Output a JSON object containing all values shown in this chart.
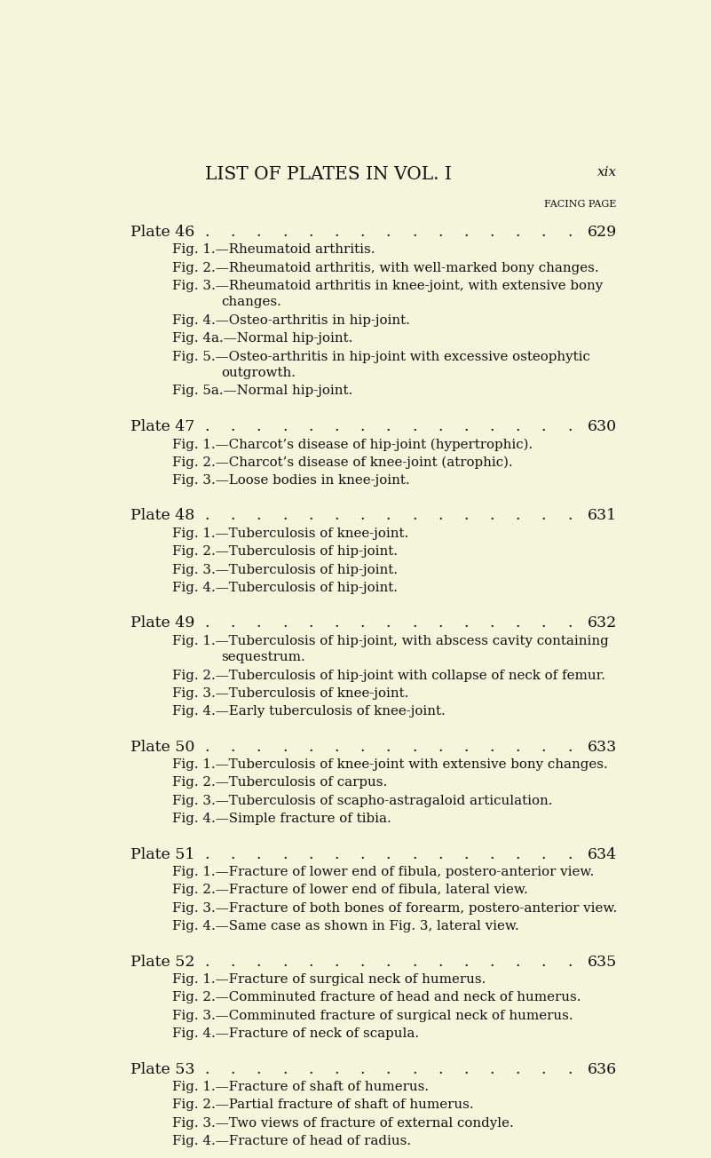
{
  "bg_color": "#f5f5dc",
  "title": "LIST OF PLATES IN VOL. I",
  "page_num": "xix",
  "facing_page_label": "FACING PAGE",
  "sections": [
    {
      "plate": "Plate 46",
      "page": "629",
      "figures": [
        "Fig. 1.—Rheumatoid arthritis.",
        "Fig. 2.—Rheumatoid arthritis, with well-marked bony changes.",
        "Fig. 3.—Rheumatoid arthritis in knee-joint, with extensive bony\nchanges.",
        "Fig. 4.—Osteo-arthritis in hip-joint.",
        "Fig. 4a.—Normal hip-joint.",
        "Fig. 5.—Osteo-arthritis in hip-joint with excessive osteophytic\noutgrowth.",
        "Fig. 5a.—Normal hip-joint."
      ]
    },
    {
      "plate": "Plate 47",
      "page": "630",
      "figures": [
        "Fig. 1.—Charcot’s disease of hip-joint (hypertrophic).",
        "Fig. 2.—Charcot’s disease of knee-joint (atrophic).",
        "Fig. 3.—Loose bodies in knee-joint."
      ]
    },
    {
      "plate": "Plate 48",
      "page": "631",
      "figures": [
        "Fig. 1.—Tuberculosis of knee-joint.",
        "Fig. 2.—Tuberculosis of hip-joint.",
        "Fig. 3.—Tuberculosis of hip-joint.",
        "Fig. 4.—Tuberculosis of hip-joint."
      ]
    },
    {
      "plate": "Plate 49",
      "page": "632",
      "figures": [
        "Fig. 1.—Tuberculosis of hip-joint, with abscess cavity containing\nsequestrum.",
        "Fig. 2.—Tuberculosis of hip-joint with collapse of neck of femur.",
        "Fig. 3.—Tuberculosis of knee-joint.",
        "Fig. 4.—Early tuberculosis of knee-joint."
      ]
    },
    {
      "plate": "Plate 50",
      "page": "633",
      "figures": [
        "Fig. 1.—Tuberculosis of knee-joint with extensive bony changes.",
        "Fig. 2.—Tuberculosis of carpus.",
        "Fig. 3.—Tuberculosis of scapho-astragaloid articulation.",
        "Fig. 4.—Simple fracture of tibia."
      ]
    },
    {
      "plate": "Plate 51",
      "page": "634",
      "figures": [
        "Fig. 1.—Fracture of lower end of fibula, postero-anterior view.",
        "Fig. 2.—Fracture of lower end of fibula, lateral view.",
        "Fig. 3.—Fracture of both bones of forearm, postero-anterior view.",
        "Fig. 4.—Same case as shown in Fig. 3, lateral view."
      ]
    },
    {
      "plate": "Plate 52",
      "page": "635",
      "figures": [
        "Fig. 1.—Fracture of surgical neck of humerus.",
        "Fig. 2.—Comminuted fracture of head and neck of humerus.",
        "Fig. 3.—Comminuted fracture of surgical neck of humerus.",
        "Fig. 4.—Fracture of neck of scapula."
      ]
    },
    {
      "plate": "Plate 53",
      "page": "636",
      "figures": [
        "Fig. 1.—Fracture of shaft of humerus.",
        "Fig. 2.—Partial fracture of shaft of humerus.",
        "Fig. 3.—Two views of fracture of external condyle.",
        "Fig. 4.—Fracture of head of radius."
      ]
    }
  ]
}
